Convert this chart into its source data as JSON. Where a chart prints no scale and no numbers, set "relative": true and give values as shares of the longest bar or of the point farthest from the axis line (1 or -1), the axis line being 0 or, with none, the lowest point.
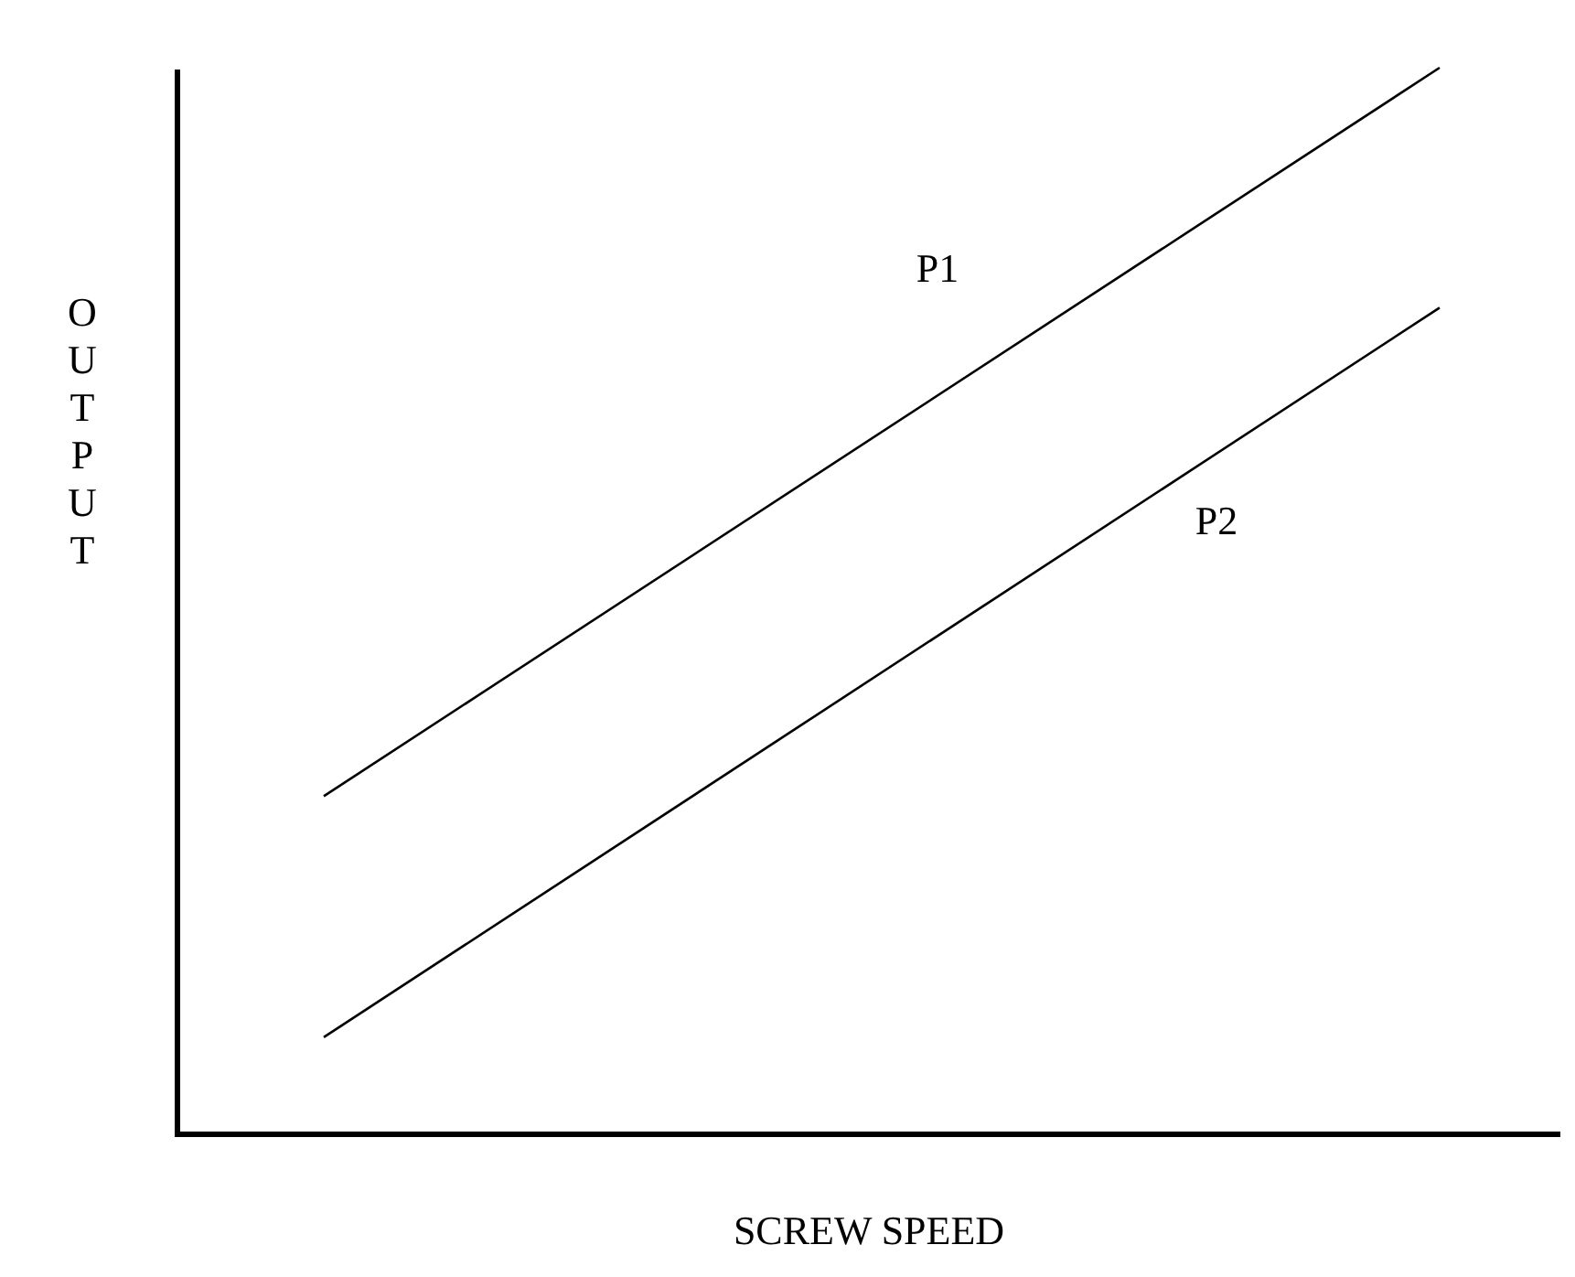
{
  "chart_data": {
    "type": "line",
    "relative": true,
    "xlabel": "SCREW SPEED",
    "ylabel": "OUTPUT",
    "categories": [
      null,
      null
    ],
    "series": [
      {
        "name": "P1",
        "color": "#000000",
        "values": [
          0.317,
          1
        ]
      },
      {
        "name": "P2",
        "color": "#000000",
        "values": [
          0.091,
          0.775
        ]
      }
    ],
    "grid": false,
    "legend": false,
    "marker": "none",
    "line_style": "solid"
  }
}
